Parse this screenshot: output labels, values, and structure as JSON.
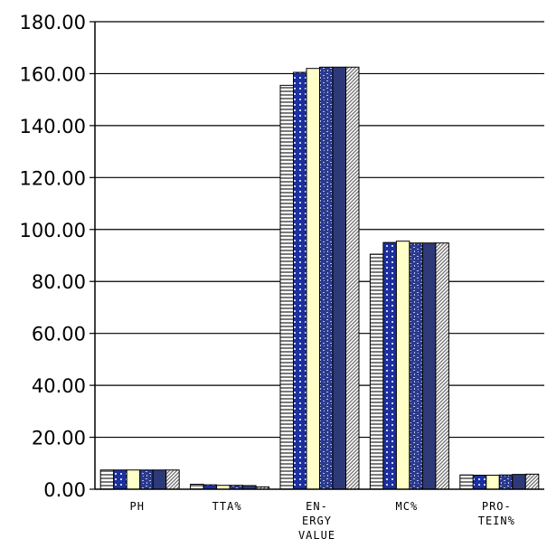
{
  "chart_data": {
    "type": "bar",
    "title": "",
    "xlabel": "",
    "ylabel": "",
    "ylim": [
      0,
      180
    ],
    "y_ticks": [
      "0.00",
      "20.00",
      "40.00",
      "60.00",
      "80.00",
      "100.00",
      "120.00",
      "140.00",
      "160.00",
      "180.00"
    ],
    "grid": "horizontal",
    "legend": "none",
    "categories": [
      [
        "PH"
      ],
      [
        "TTA%"
      ],
      [
        "EN-",
        "ERGY",
        "VALUE"
      ],
      [
        "MC%"
      ],
      [
        "PRO-",
        "TEIN%"
      ]
    ],
    "series": [
      {
        "values": [
          7.4,
          1.9,
          155.5,
          90.5,
          5.5
        ],
        "pattern": "hlines",
        "color": "#9a9a9a"
      },
      {
        "values": [
          7.4,
          1.7,
          160.5,
          95.0,
          5.4
        ],
        "pattern": "dots",
        "color": "#1c2f9c"
      },
      {
        "values": [
          7.4,
          1.5,
          162.0,
          95.5,
          5.4
        ],
        "pattern": "solid",
        "color": "#ffffc8"
      },
      {
        "values": [
          7.4,
          1.5,
          162.5,
          94.8,
          5.5
        ],
        "pattern": "speckle",
        "color": "#2b3a8c"
      },
      {
        "values": [
          7.4,
          1.4,
          162.5,
          94.8,
          5.7
        ],
        "pattern": "solid",
        "color": "#2e3a78"
      },
      {
        "values": [
          7.4,
          0.9,
          162.5,
          94.8,
          5.8
        ],
        "pattern": "hatch",
        "color": "#8a8a8a"
      }
    ]
  }
}
